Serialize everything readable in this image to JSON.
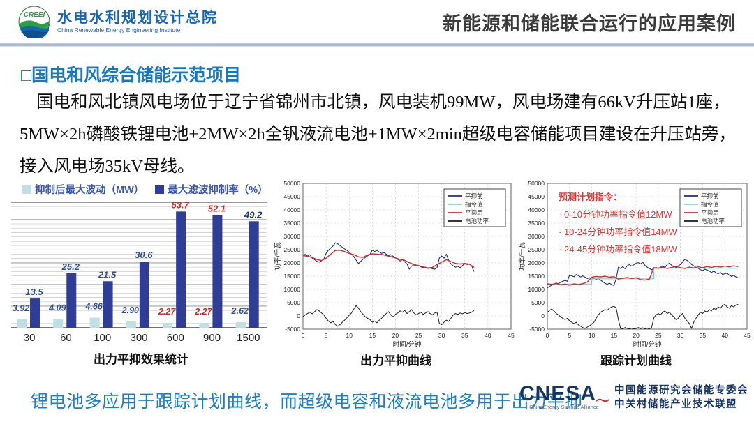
{
  "header": {
    "logo_mark": "CREEI",
    "org_cn": "水电水利规划设计总院",
    "org_en": "China Renewable Energy Engineering Institute",
    "title": "新能源和储能联合运行的应用案例"
  },
  "section_title": "□国电和风综合储能示范项目",
  "paragraph": "国电和风北镇风电场位于辽宁省锦州市北镇，风电装机99MW，风电场建有66kV升压站1座，5MW×2h磷酸铁锂电池+2MW×2h全钒液流电池+1MW×2min超级电容储能项目建设在升压站旁，接入风电场35kV母线。",
  "bottom_note": "锂电池多应用于跟踪计划曲线，而超级电容和液流电池多用于出力平抑",
  "cnesa": {
    "name": "CNESA",
    "sub": "ChinaEnergy Storage Alliance",
    "org1": "中国能源研究会储能专委会",
    "org2": "中关村储能产业技术联盟"
  },
  "chart_data": [
    {
      "type": "bar",
      "title": "出力平抑效果统计",
      "categories": [
        "30",
        "60",
        "100",
        "300",
        "600",
        "900",
        "1500"
      ],
      "ylim": [
        0,
        58
      ],
      "grid": "horizontal-ruled",
      "legend_position": "top-left",
      "series": [
        {
          "name": "抑制后最大波动（MW）",
          "color": "#bfdfe3",
          "values": [
            3.92,
            4.09,
            4.66,
            2.9,
            2.27,
            2.27,
            2.62
          ],
          "label_colors": [
            "#33508f",
            "#33508f",
            "#33508f",
            "#33508f",
            "#c23030",
            "#c23030",
            "#33508f"
          ]
        },
        {
          "name": "最大滤波抑制率（%）",
          "color": "#2f3d94",
          "values": [
            13.5,
            25.2,
            21.5,
            30.6,
            53.7,
            52.1,
            49.2
          ],
          "label_colors": [
            "#33508f",
            "#33508f",
            "#33508f",
            "#33508f",
            "#c23030",
            "#c23030",
            "#22335f"
          ]
        }
      ]
    },
    {
      "type": "line",
      "title": "出力平抑曲线",
      "xlabel": "时间/分钟",
      "ylabel": "功率/千瓦",
      "xlim": [
        0,
        45
      ],
      "ylim": [
        -5000,
        50000
      ],
      "xticks": [
        0,
        5,
        10,
        15,
        20,
        25,
        30,
        35,
        40,
        45
      ],
      "yticks": [
        -5000,
        0,
        5000,
        10000,
        15000,
        20000,
        25000,
        30000,
        35000,
        40000,
        45000,
        50000
      ],
      "grid": "dashed",
      "legend_position": "top-right",
      "series": [
        {
          "name": "平抑前",
          "color": "#1f2d7e",
          "width": 1.1,
          "dx": 0.5,
          "values": [
            22800,
            23200,
            22600,
            23100,
            21800,
            21200,
            20600,
            20300,
            20800,
            21500,
            23600,
            24800,
            25600,
            26400,
            27600,
            27200,
            26500,
            25900,
            25300,
            24700,
            24100,
            23300,
            22400,
            21000,
            19800,
            20600,
            21400,
            22100,
            22700,
            23300,
            24800,
            24300,
            24700,
            24100,
            23600,
            23900,
            23300,
            22800,
            23100,
            22500,
            21900,
            21300,
            20700,
            21200,
            20400,
            19600,
            17600,
            18800,
            19300,
            18800,
            19000,
            18500,
            18200,
            18400,
            17900,
            18100,
            17800,
            17600,
            18200,
            21900,
            22600,
            21800,
            23300,
            21000,
            19600,
            18900,
            18400,
            18700,
            18200,
            19000,
            19900,
            19400,
            19600,
            18800,
            16700
          ]
        },
        {
          "name": "指令值",
          "color": "#7fd0e0",
          "width": 1.0,
          "dx": 1,
          "values": [
            22800,
            22500,
            22100,
            21300,
            20900,
            21800,
            23300,
            24700,
            24800,
            24300,
            23600,
            23100,
            22300,
            22100,
            23000,
            23400,
            23300,
            23200,
            22800,
            22400,
            21900,
            21300,
            21000,
            20100,
            19400,
            19000,
            18500,
            18100,
            18300,
            19400,
            20300,
            21200,
            20500,
            19800,
            19600,
            19800,
            19500,
            18400
          ]
        },
        {
          "name": "平抑后",
          "color": "#cc2b2b",
          "width": 1.4,
          "dx": 1,
          "values": [
            22800,
            22500,
            22100,
            21300,
            20900,
            21800,
            23300,
            24700,
            24800,
            24300,
            23600,
            23100,
            22300,
            22100,
            23000,
            23400,
            23300,
            23200,
            22800,
            22400,
            21900,
            21300,
            21000,
            20100,
            19400,
            19000,
            18500,
            18100,
            18300,
            19400,
            20300,
            21200,
            20500,
            19800,
            19600,
            19800,
            19500,
            18400
          ]
        },
        {
          "name": "电池功率",
          "color": "#1a1a1a",
          "width": 1.0,
          "dx": 0.5,
          "values": [
            -300,
            400,
            900,
            1400,
            800,
            1600,
            2400,
            1900,
            1100,
            400,
            -900,
            -1900,
            -2600,
            -2100,
            -3300,
            -3900,
            -3300,
            -2400,
            -1600,
            -700,
            300,
            1100,
            2600,
            3900,
            2900,
            1600,
            600,
            -400,
            -900,
            -1400,
            -2400,
            -1900,
            -2600,
            -1600,
            -900,
            100,
            900,
            1600,
            400,
            -400,
            600,
            1100,
            1900,
            1400,
            2100,
            900,
            1600,
            2400,
            1100,
            400,
            900,
            1400,
            600,
            1100,
            1600,
            900,
            400,
            1100,
            1400,
            -2900,
            -3300,
            -2400,
            -1600,
            -2100,
            -900,
            400,
            900,
            600,
            1100,
            800,
            1300,
            900,
            1100,
            1400,
            2000
          ]
        }
      ]
    },
    {
      "type": "line",
      "title": "跟踪计划曲线",
      "xlabel": "时间/分钟",
      "ylabel": "功率/千瓦",
      "xlim": [
        0,
        45
      ],
      "ylim": [
        -5000,
        50000
      ],
      "xticks": [
        0,
        5,
        10,
        15,
        20,
        25,
        30,
        35,
        40,
        45
      ],
      "yticks": [
        -5000,
        0,
        5000,
        10000,
        15000,
        20000,
        25000,
        30000,
        35000,
        40000,
        45000,
        50000
      ],
      "grid": "dashed",
      "legend_position": "top-right",
      "annotation": {
        "title": "预测计划指令：",
        "items": [
          "· 0-10分钟功率指令值12MW",
          "· 10-24分钟功率指令值14MW",
          "· 24-45分钟功率指令值18MW"
        ]
      },
      "series": [
        {
          "name": "平抑前",
          "color": "#1f2d7e",
          "width": 1.1,
          "dx": 0.5,
          "values": [
            10600,
            11100,
            11600,
            12100,
            12400,
            12200,
            12700,
            13100,
            13400,
            13100,
            15400,
            15100,
            14800,
            15600,
            15200,
            14700,
            15100,
            14600,
            14100,
            14400,
            13900,
            14300,
            13700,
            14100,
            13500,
            12900,
            12300,
            11900,
            12400,
            11800,
            11500,
            13900,
            18400,
            17900,
            18600,
            17800,
            18900,
            19400,
            18800,
            19300,
            19900,
            20100,
            19600,
            20300,
            19100,
            18400,
            17900,
            17400,
            17900,
            18300,
            17900,
            18400,
            18900,
            18300,
            19400,
            19900,
            19100,
            18600,
            18300,
            18900,
            19400,
            20400,
            21400,
            20900,
            20300,
            19400,
            18900,
            18300,
            17900,
            17400,
            17100,
            17600,
            17300,
            16900,
            16400,
            16900,
            16300,
            15900,
            16400,
            15600,
            15900,
            16100,
            15400,
            14900,
            15300,
            14700,
            14400
          ]
        },
        {
          "name": "指令值",
          "color": "#7fd0e0",
          "width": 1.2,
          "points": [
            [
              0,
              12000
            ],
            [
              10,
              12000
            ],
            [
              10,
              14000
            ],
            [
              24,
              14000
            ],
            [
              24,
              18000
            ],
            [
              43,
              18000
            ]
          ]
        },
        {
          "name": "平抑后",
          "color": "#cc2b2b",
          "width": 1.4,
          "dx": 1,
          "values": [
            12100,
            11900,
            12300,
            11700,
            12000,
            11600,
            12100,
            11800,
            12200,
            12800,
            14600,
            14900,
            14700,
            15000,
            14600,
            14800,
            13900,
            14200,
            14500,
            14100,
            14400,
            13700,
            13500,
            13900,
            18200,
            18000,
            18400,
            17900,
            18300,
            18600,
            18200,
            17900,
            18400,
            18100,
            18500,
            18200,
            18600,
            18300,
            18700,
            18400,
            18800,
            18500,
            18900,
            18600
          ]
        },
        {
          "name": "电池功率",
          "color": "#1a1a1a",
          "width": 1.0,
          "dx": 0.5,
          "values": [
            1400,
            2100,
            2600,
            1900,
            900,
            400,
            -400,
            -900,
            -1400,
            -900,
            -1900,
            -2400,
            -2900,
            -2400,
            -3400,
            -3900,
            -4400,
            -4700,
            -4200,
            -3700,
            -3100,
            -2400,
            -900,
            400,
            1400,
            1900,
            2400,
            2100,
            2900,
            3400,
            3600,
            3100,
            -1400,
            -4700,
            -4900,
            -4400,
            -4700,
            -4900,
            -4600,
            -4900,
            -4700,
            -4400,
            -4800,
            -4500,
            -4900,
            -4600,
            -4900,
            -4300,
            -800,
            400,
            900,
            400,
            1400,
            1900,
            900,
            1400,
            400,
            -400,
            -1400,
            -900,
            400,
            900,
            -900,
            -1900,
            -2900,
            -4700,
            -2400,
            -900,
            400,
            1400,
            900,
            1900,
            1400,
            2400,
            1900,
            2900,
            2400,
            3400,
            2900,
            3900,
            4400,
            3400,
            2900,
            3900,
            3400,
            4100,
            4400
          ]
        }
      ]
    }
  ]
}
